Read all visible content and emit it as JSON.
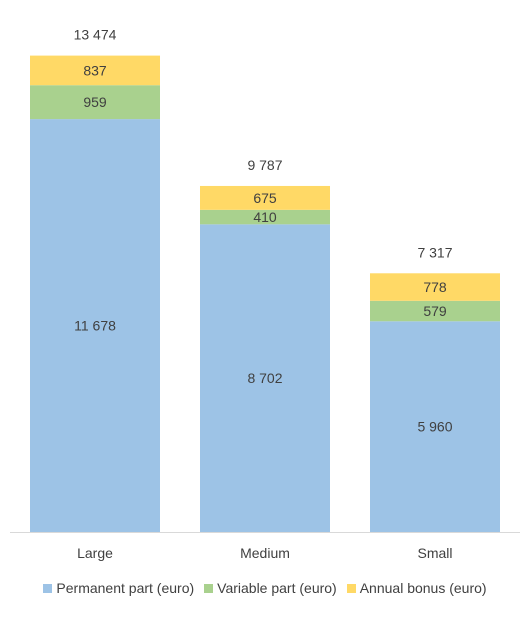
{
  "chart_data": {
    "type": "bar",
    "stacked": true,
    "categories": [
      "Large",
      "Medium",
      "Small"
    ],
    "series": [
      {
        "name": "Permanent part (euro)",
        "values": [
          11678,
          8702,
          5960
        ],
        "labels": [
          "11 678",
          "8 702",
          "5 960"
        ],
        "color": "#9DC3E6"
      },
      {
        "name": "Variable part (euro)",
        "values": [
          959,
          410,
          579
        ],
        "labels": [
          "959",
          "410",
          "579"
        ],
        "color": "#A9D18E"
      },
      {
        "name": "Annual bonus (euro)",
        "values": [
          837,
          675,
          778
        ],
        "labels": [
          "837",
          "675",
          "778"
        ],
        "color": "#FFD966"
      }
    ],
    "totals": [
      13474,
      9787,
      7317
    ],
    "total_labels": [
      "13 474",
      "9 787",
      "7 317"
    ],
    "ylim": [
      0,
      14000
    ],
    "grid": false,
    "legend": "bottom"
  }
}
